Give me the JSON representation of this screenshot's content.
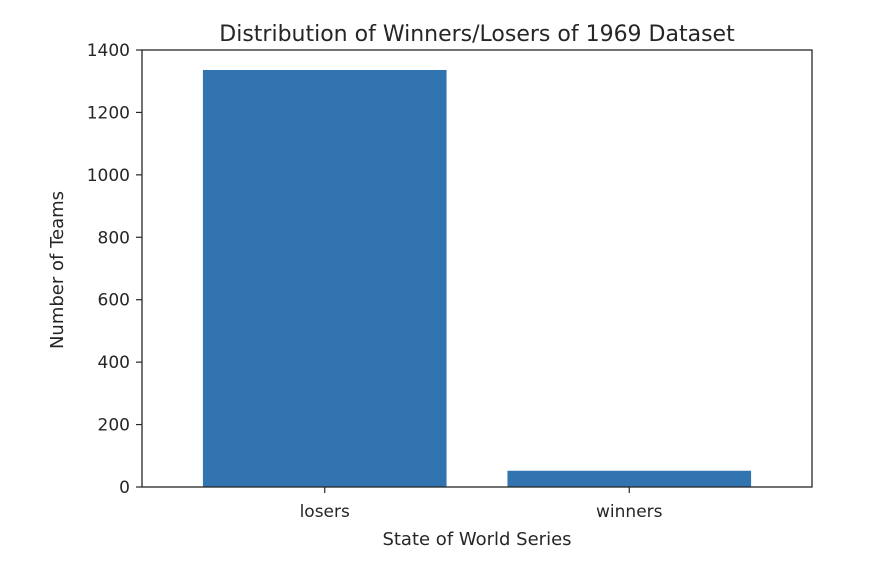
{
  "chart_data": {
    "type": "bar",
    "title": "Distribution of Winners/Losers of 1969 Dataset",
    "xlabel": "State of World Series",
    "ylabel": "Number of Teams",
    "categories": [
      "losers",
      "winners"
    ],
    "values": [
      1336,
      52
    ],
    "ylim": [
      0,
      1400
    ],
    "yticks": [
      0,
      200,
      400,
      600,
      800,
      1000,
      1200,
      1400
    ],
    "grid": false,
    "bar_color": "#3274b0",
    "axis_color": "#262626"
  }
}
